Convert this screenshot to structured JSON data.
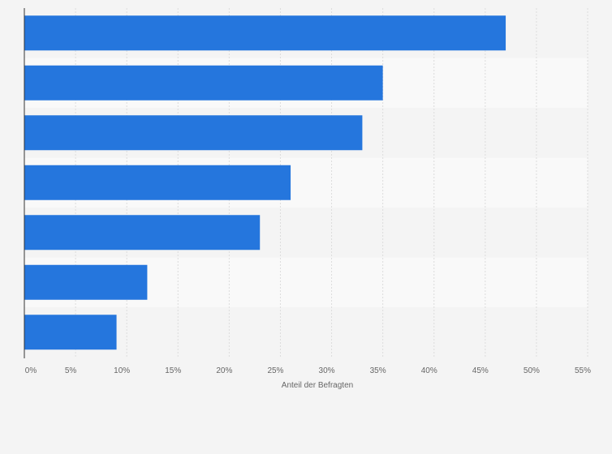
{
  "chart_data": {
    "type": "bar",
    "orientation": "horizontal",
    "title": "",
    "xlabel": "Anteil der Befragten",
    "ylabel": "",
    "categories": [
      "",
      "",
      "",
      "",
      "",
      "",
      ""
    ],
    "values": [
      47,
      35,
      33,
      26,
      23,
      12,
      9
    ],
    "xlim": [
      0,
      55
    ],
    "x_ticks": [
      "0%",
      "5%",
      "10%",
      "15%",
      "20%",
      "25%",
      "30%",
      "35%",
      "40%",
      "45%",
      "50%",
      "55%"
    ],
    "x_tick_values": [
      0,
      5,
      10,
      15,
      20,
      25,
      30,
      35,
      40,
      45,
      50,
      55
    ],
    "grid": true,
    "legend": "none"
  },
  "colors": {
    "bar": "#2576dd",
    "band_light": "#f9f9f9",
    "band_dark": "#f4f4f4",
    "grid": "#dcdcdc",
    "axis": "#333333",
    "text": "#666666"
  }
}
